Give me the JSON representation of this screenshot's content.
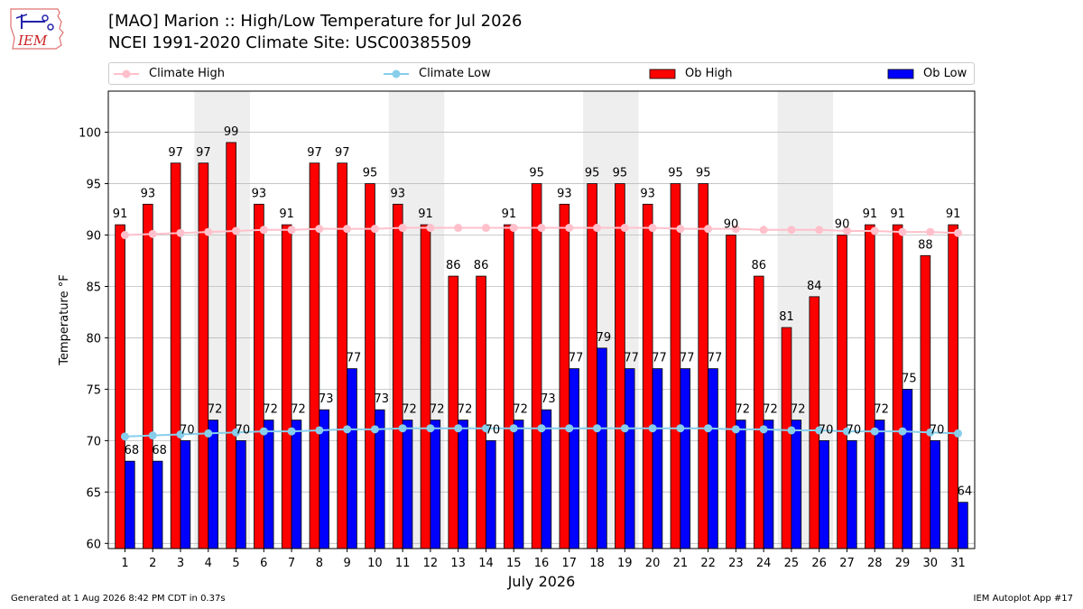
{
  "header": {
    "logo_text": "IEM",
    "title_line1": "[MAO] Marion :: High/Low Temperature for Jul 2026",
    "title_line2": "NCEI 1991-2020 Climate Site: USC00385509"
  },
  "legend": {
    "climate_high": "Climate High",
    "climate_low": "Climate Low",
    "ob_high": "Ob High",
    "ob_low": "Ob Low"
  },
  "colors": {
    "ob_high": "#ff0000",
    "ob_low": "#0000ff",
    "climate_high": "#ffc0cb",
    "climate_low": "#87ceeb",
    "weekend_shade": "#eeeeee",
    "grid": "#bbbbbb"
  },
  "chart_data": {
    "type": "bar",
    "xlabel": "July 2026",
    "ylabel": "Temperature °F",
    "ylim": [
      59.5,
      104
    ],
    "yticks": [
      60,
      65,
      70,
      75,
      80,
      85,
      90,
      95,
      100
    ],
    "categories": [
      "1",
      "2",
      "3",
      "4",
      "5",
      "6",
      "7",
      "8",
      "9",
      "10",
      "11",
      "12",
      "13",
      "14",
      "15",
      "16",
      "17",
      "18",
      "19",
      "20",
      "21",
      "22",
      "23",
      "24",
      "25",
      "26",
      "27",
      "28",
      "29",
      "30",
      "31"
    ],
    "shaded_days": [
      [
        4,
        5
      ],
      [
        11,
        12
      ],
      [
        18,
        19
      ],
      [
        25,
        26
      ]
    ],
    "grid": true,
    "legend_position": "top",
    "series": [
      {
        "name": "Ob High",
        "values": [
          91,
          93,
          97,
          97,
          99,
          93,
          91,
          97,
          97,
          95,
          93,
          91,
          86,
          86,
          91,
          95,
          93,
          95,
          95,
          93,
          95,
          95,
          90,
          86,
          81,
          84,
          90,
          91,
          91,
          88,
          91
        ]
      },
      {
        "name": "Ob Low",
        "values": [
          68,
          68,
          70,
          72,
          70,
          72,
          72,
          73,
          77,
          73,
          72,
          72,
          72,
          70,
          72,
          73,
          77,
          79,
          77,
          77,
          77,
          77,
          72,
          72,
          72,
          70,
          70,
          72,
          75,
          70,
          64
        ]
      },
      {
        "name": "Climate High",
        "values": [
          90.0,
          90.1,
          90.2,
          90.3,
          90.4,
          90.5,
          90.5,
          90.6,
          90.6,
          90.6,
          90.7,
          90.7,
          90.7,
          90.7,
          90.7,
          90.7,
          90.7,
          90.7,
          90.7,
          90.7,
          90.6,
          90.6,
          90.6,
          90.5,
          90.5,
          90.5,
          90.4,
          90.4,
          90.3,
          90.3,
          90.2
        ]
      },
      {
        "name": "Climate Low",
        "values": [
          70.4,
          70.5,
          70.6,
          70.7,
          70.8,
          70.9,
          70.9,
          71.0,
          71.1,
          71.1,
          71.2,
          71.2,
          71.2,
          71.2,
          71.2,
          71.2,
          71.2,
          71.2,
          71.2,
          71.2,
          71.2,
          71.2,
          71.1,
          71.1,
          71.0,
          71.0,
          70.9,
          70.9,
          70.9,
          70.8,
          70.7
        ]
      }
    ]
  },
  "footer": {
    "generated": "Generated at 1 Aug 2026 8:42 PM CDT in 0.37s",
    "app": "IEM Autoplot App #17"
  }
}
